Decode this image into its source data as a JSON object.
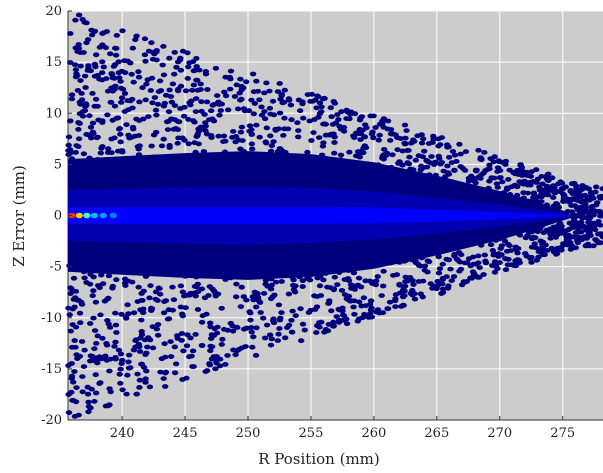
{
  "chart_data": {
    "type": "hexbin-scatter",
    "title": "",
    "xlabel": "R Position (mm)",
    "ylabel": "Z Error (mm)",
    "xlim": [
      235.7,
      278.2
    ],
    "ylim": [
      -20,
      20
    ],
    "xticks": [
      240,
      245,
      250,
      255,
      260,
      265,
      270,
      275
    ],
    "yticks": [
      -20,
      -15,
      -10,
      -5,
      0,
      5,
      10,
      15,
      20
    ],
    "grid": true,
    "colors": {
      "background": "#cccccc",
      "grid": "#ffffff",
      "sparse": "#00007f",
      "dense": "#0000ff",
      "peak": "#ff0000"
    },
    "core_band": [
      {
        "x": 235.7,
        "half_width": 5.5
      },
      {
        "x": 240,
        "half_width": 5.8
      },
      {
        "x": 245,
        "half_width": 6.1
      },
      {
        "x": 250,
        "half_width": 6.3
      },
      {
        "x": 255,
        "half_width": 6.0
      },
      {
        "x": 260,
        "half_width": 5.2
      },
      {
        "x": 265,
        "half_width": 3.9
      },
      {
        "x": 270,
        "half_width": 2.4
      },
      {
        "x": 273,
        "half_width": 1.3
      },
      {
        "x": 275.5,
        "half_width": 0.3
      }
    ],
    "peak_points": [
      {
        "x": 236.0,
        "y": 0,
        "color": "#ff3000"
      },
      {
        "x": 236.6,
        "y": 0,
        "color": "#ffd000"
      },
      {
        "x": 237.2,
        "y": 0,
        "color": "#40ffc0"
      },
      {
        "x": 237.8,
        "y": 0,
        "color": "#00c0ff"
      },
      {
        "x": 238.5,
        "y": 0,
        "color": "#00a0ff"
      },
      {
        "x": 239.3,
        "y": 0,
        "color": "#0080ff"
      }
    ]
  }
}
